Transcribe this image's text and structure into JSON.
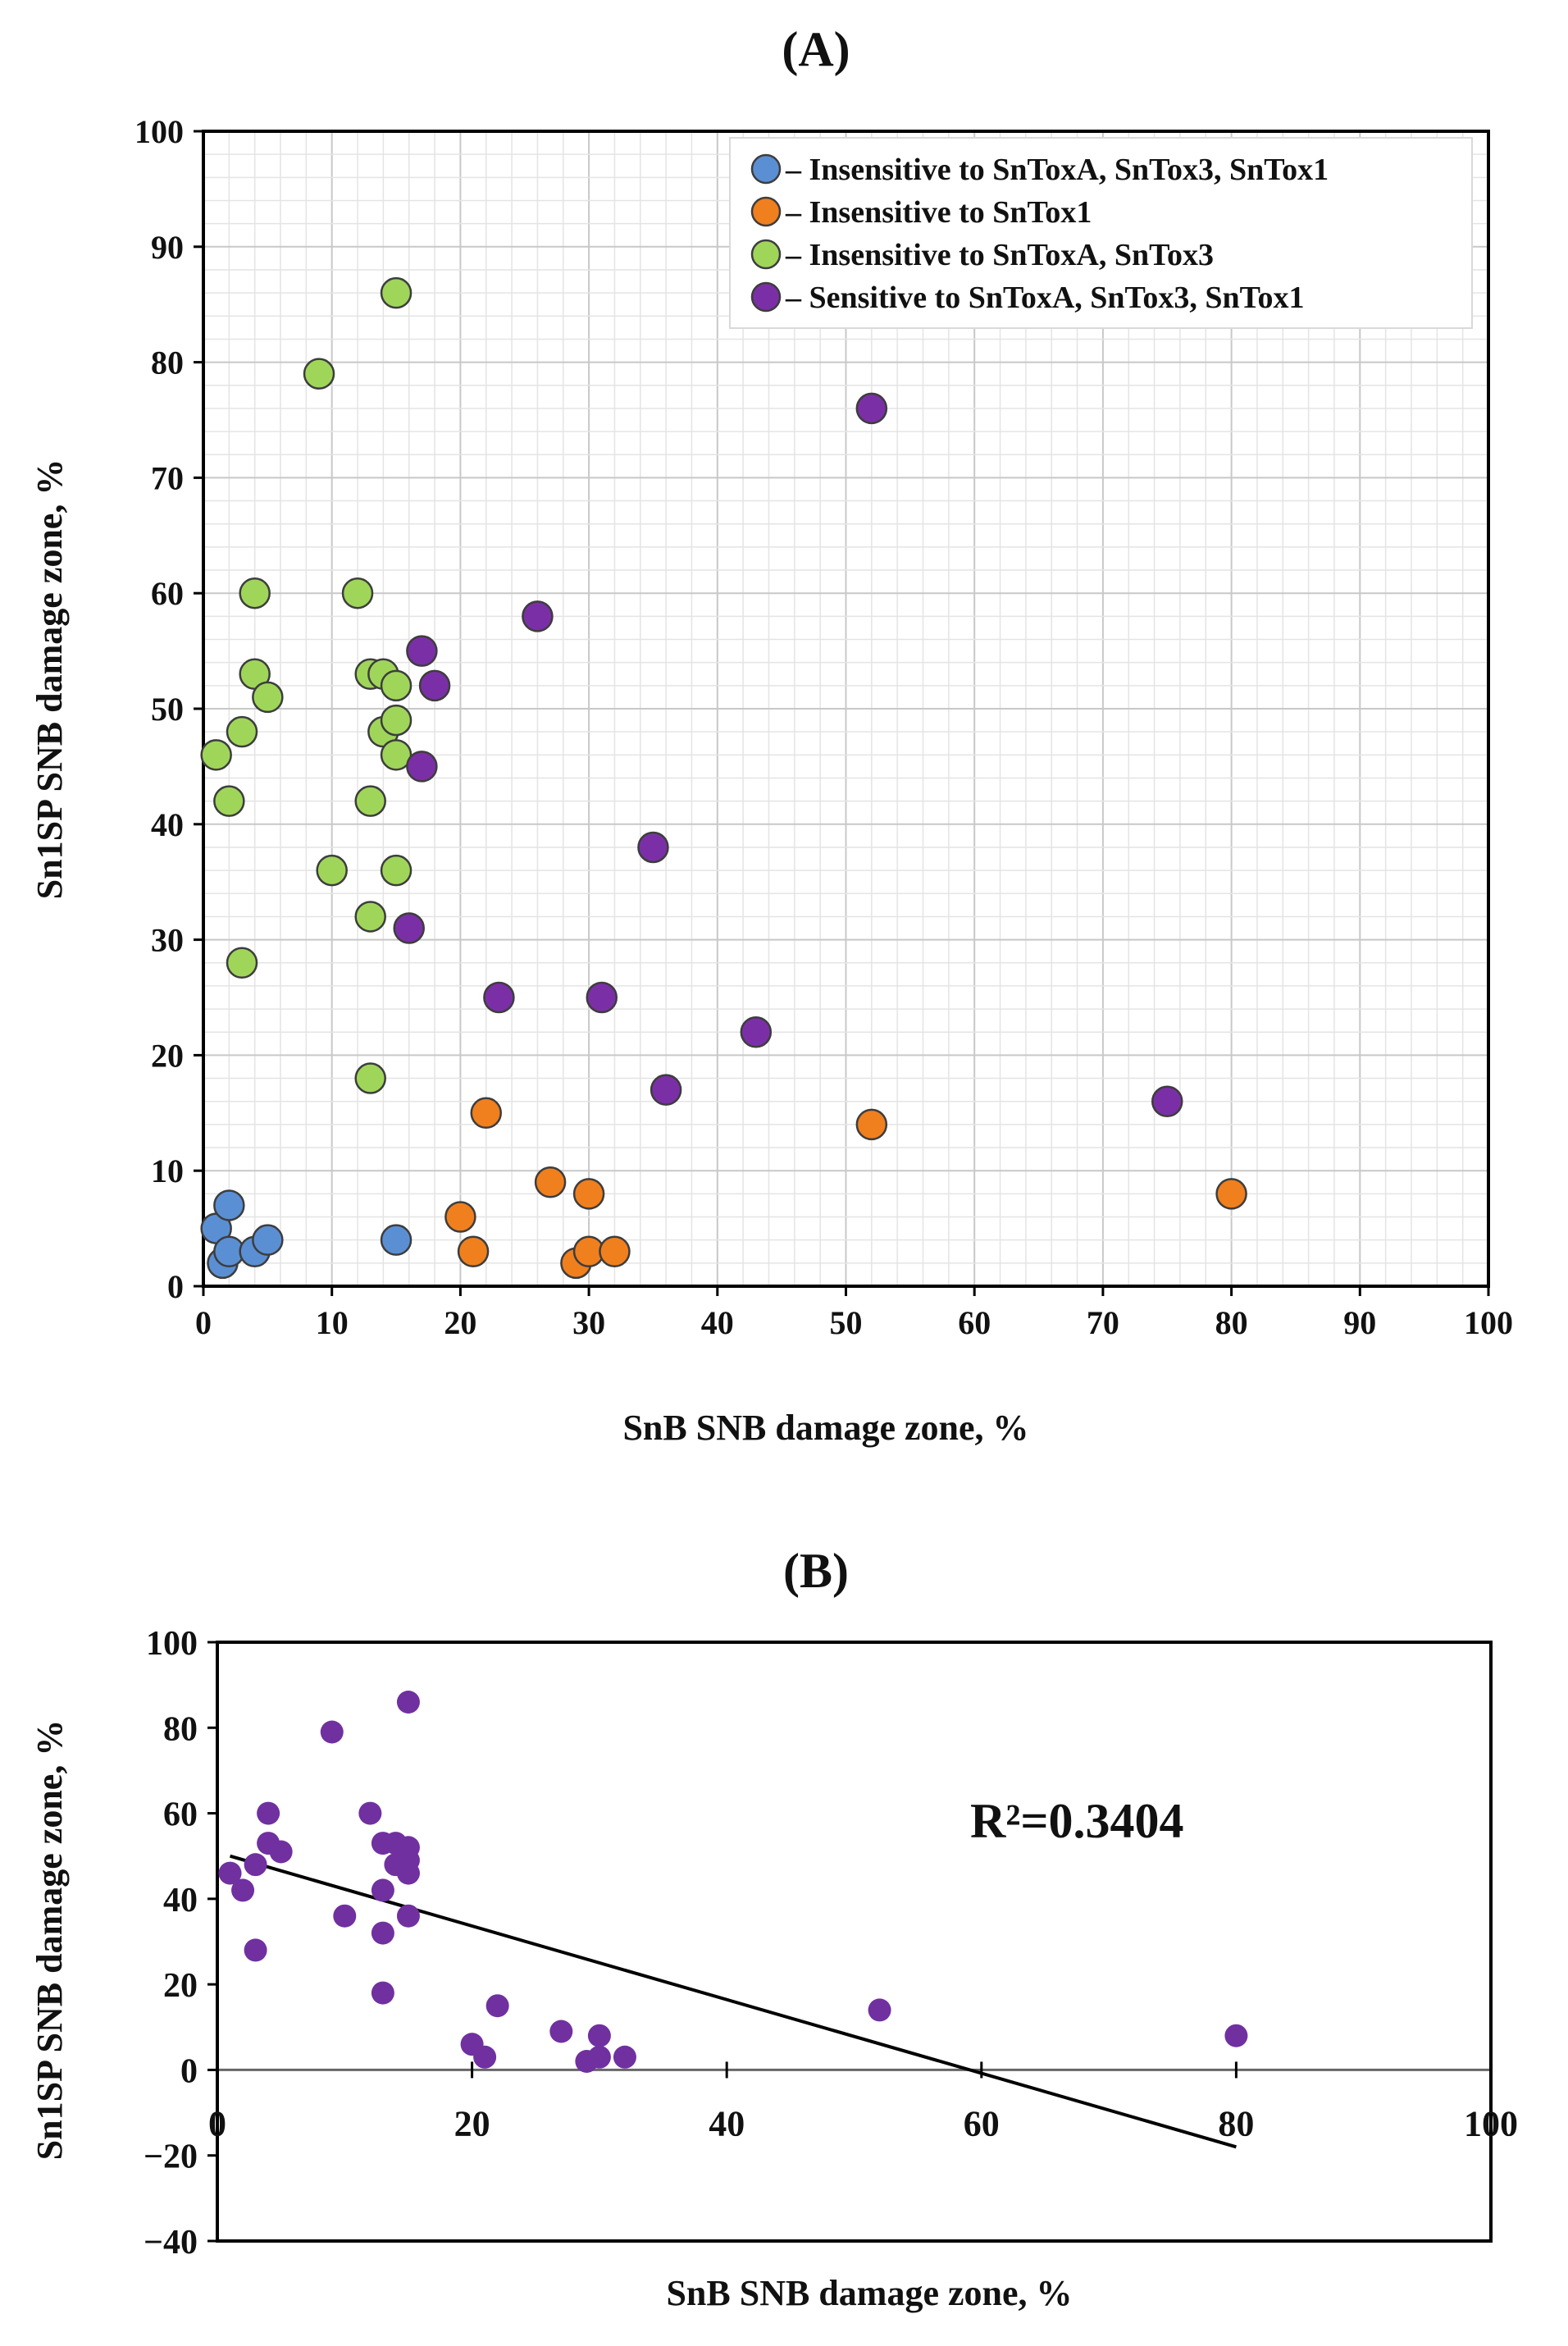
{
  "chart_data": [
    {
      "panel": "(A)",
      "type": "scatter",
      "xlabel": "SnB SNB damage zone, %",
      "ylabel": "Sn1SP SNB damage zone, %",
      "xlim": [
        0,
        100
      ],
      "ylim": [
        0,
        100
      ],
      "xticks": [
        0,
        10,
        20,
        30,
        40,
        50,
        60,
        70,
        80,
        90,
        100
      ],
      "yticks": [
        0,
        10,
        20,
        30,
        40,
        50,
        60,
        70,
        80,
        90,
        100
      ],
      "grid": true,
      "legend_position": "top-right",
      "series": [
        {
          "name": "– Insensitive to  SnToxA, SnTox3, SnTox1",
          "color": "#5b8fd4",
          "points": [
            [
              1,
              5
            ],
            [
              1.5,
              2
            ],
            [
              2,
              7
            ],
            [
              2,
              3
            ],
            [
              4,
              3
            ],
            [
              5,
              4
            ],
            [
              15,
              4
            ]
          ]
        },
        {
          "name": "– Insensitive to  SnTox1",
          "color": "#f07f1e",
          "points": [
            [
              20,
              6
            ],
            [
              21,
              3
            ],
            [
              22,
              15
            ],
            [
              27,
              9
            ],
            [
              29,
              2
            ],
            [
              30,
              3
            ],
            [
              30,
              8
            ],
            [
              32,
              3
            ],
            [
              52,
              14
            ],
            [
              80,
              8
            ]
          ]
        },
        {
          "name": "– Insensitive to  SnToxA, SnTox3",
          "color": "#9fd65a",
          "points": [
            [
              1,
              46
            ],
            [
              2,
              42
            ],
            [
              3,
              48
            ],
            [
              3,
              28
            ],
            [
              4,
              60
            ],
            [
              4,
              53
            ],
            [
              5,
              51
            ],
            [
              9,
              79
            ],
            [
              10,
              36
            ],
            [
              12,
              60
            ],
            [
              13,
              53
            ],
            [
              13,
              42
            ],
            [
              13,
              32
            ],
            [
              13,
              18
            ],
            [
              14,
              53
            ],
            [
              14,
              48
            ],
            [
              15,
              86
            ],
            [
              15,
              52
            ],
            [
              15,
              49
            ],
            [
              15,
              46
            ],
            [
              15,
              36
            ]
          ]
        },
        {
          "name": "– Sensitive to  SnToxA, SnTox3, SnTox1",
          "color": "#7b2fa6",
          "points": [
            [
              16,
              31
            ],
            [
              17,
              55
            ],
            [
              17,
              45
            ],
            [
              18,
              52
            ],
            [
              23,
              25
            ],
            [
              26,
              58
            ],
            [
              31,
              25
            ],
            [
              35,
              38
            ],
            [
              36,
              17
            ],
            [
              43,
              22
            ],
            [
              52,
              76
            ],
            [
              75,
              16
            ]
          ]
        }
      ]
    },
    {
      "panel": "(B)",
      "type": "scatter",
      "xlabel": "SnB SNB damage zone, %",
      "ylabel": "Sn1SP SNB damage zone, %",
      "xlim": [
        0,
        100
      ],
      "ylim": [
        -40,
        100
      ],
      "xticks": [
        0,
        20,
        40,
        60,
        80,
        100
      ],
      "yticks": [
        -40,
        -20,
        0,
        20,
        40,
        60,
        80,
        100
      ],
      "grid": false,
      "annotation": "R²=0.3404",
      "color": "#7030a0",
      "trendline": {
        "x": [
          1,
          80
        ],
        "y": [
          50,
          -18
        ]
      },
      "points": [
        [
          1,
          46
        ],
        [
          2,
          42
        ],
        [
          3,
          48
        ],
        [
          3,
          28
        ],
        [
          4,
          60
        ],
        [
          4,
          53
        ],
        [
          5,
          51
        ],
        [
          9,
          79
        ],
        [
          10,
          36
        ],
        [
          12,
          60
        ],
        [
          13,
          53
        ],
        [
          13,
          42
        ],
        [
          13,
          32
        ],
        [
          13,
          18
        ],
        [
          14,
          53
        ],
        [
          14,
          48
        ],
        [
          15,
          86
        ],
        [
          15,
          52
        ],
        [
          15,
          49
        ],
        [
          15,
          46
        ],
        [
          15,
          36
        ],
        [
          20,
          6
        ],
        [
          21,
          3
        ],
        [
          22,
          15
        ],
        [
          27,
          9
        ],
        [
          29,
          2
        ],
        [
          30,
          3
        ],
        [
          30,
          8
        ],
        [
          32,
          3
        ],
        [
          52,
          14
        ],
        [
          80,
          8
        ]
      ]
    }
  ]
}
